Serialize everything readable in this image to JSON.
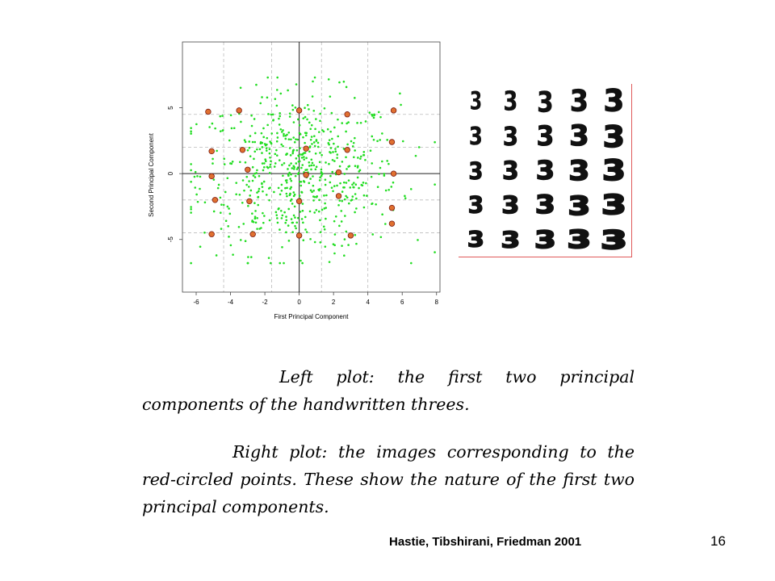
{
  "chart_data": {
    "type": "scatter",
    "xlabel": "First Principal Component",
    "ylabel": "Second Principal Component",
    "xlim": [
      -6.8,
      8.2
    ],
    "ylim": [
      -9,
      10
    ],
    "x_ticks": [
      -6,
      -4,
      -2,
      0,
      2,
      4,
      6,
      8
    ],
    "y_ticks": [
      -5,
      0,
      5
    ],
    "grid": "dashed at -4.4, -1.6, 1.3, 4.0 (x) and -4.5, -2.0, 2.0, 4.5 (y)",
    "reference_lines": {
      "x": 0,
      "y": 0
    },
    "point_color": "#22dd22",
    "highlight_color": "#e07030",
    "series": [
      {
        "points_count": 650
      },
      {
        "highlighted": [
          {
            "x": -5.3,
            "y": 4.7
          },
          {
            "x": -3.5,
            "y": 4.8
          },
          {
            "x": 0.0,
            "y": 4.8
          },
          {
            "x": 2.8,
            "y": 4.5
          },
          {
            "x": 5.5,
            "y": 4.8
          },
          {
            "x": -5.1,
            "y": 1.7
          },
          {
            "x": -3.3,
            "y": 1.8
          },
          {
            "x": 0.4,
            "y": 1.9
          },
          {
            "x": 2.8,
            "y": 1.8
          },
          {
            "x": 5.4,
            "y": 2.4
          },
          {
            "x": -5.1,
            "y": -0.2
          },
          {
            "x": -3.0,
            "y": 0.3
          },
          {
            "x": 0.4,
            "y": -0.1
          },
          {
            "x": 2.3,
            "y": 0.1
          },
          {
            "x": 5.5,
            "y": 0.0
          },
          {
            "x": -4.9,
            "y": -2.0
          },
          {
            "x": -2.9,
            "y": -2.1
          },
          {
            "x": 0.0,
            "y": -2.1
          },
          {
            "x": 2.3,
            "y": -1.7
          },
          {
            "x": 5.4,
            "y": -2.6
          },
          {
            "x": -5.1,
            "y": -4.6
          },
          {
            "x": -2.7,
            "y": -4.6
          },
          {
            "x": 0.0,
            "y": -4.7
          },
          {
            "x": 3.0,
            "y": -4.7
          },
          {
            "x": 5.4,
            "y": -3.8
          }
        ]
      }
    ]
  },
  "digit_grid": {
    "rows": 5,
    "cols": 5,
    "glyph": "3",
    "border_color": "#e05a5a"
  },
  "captions": {
    "left": "Left plot: the first two principal components of the handwritten threes.",
    "right": "Right plot: the images corresponding to the red-circled points. These show the nature of the first two principal components."
  },
  "attribution": "Hastie, Tibshirani, Friedman 2001",
  "page_number": "16"
}
